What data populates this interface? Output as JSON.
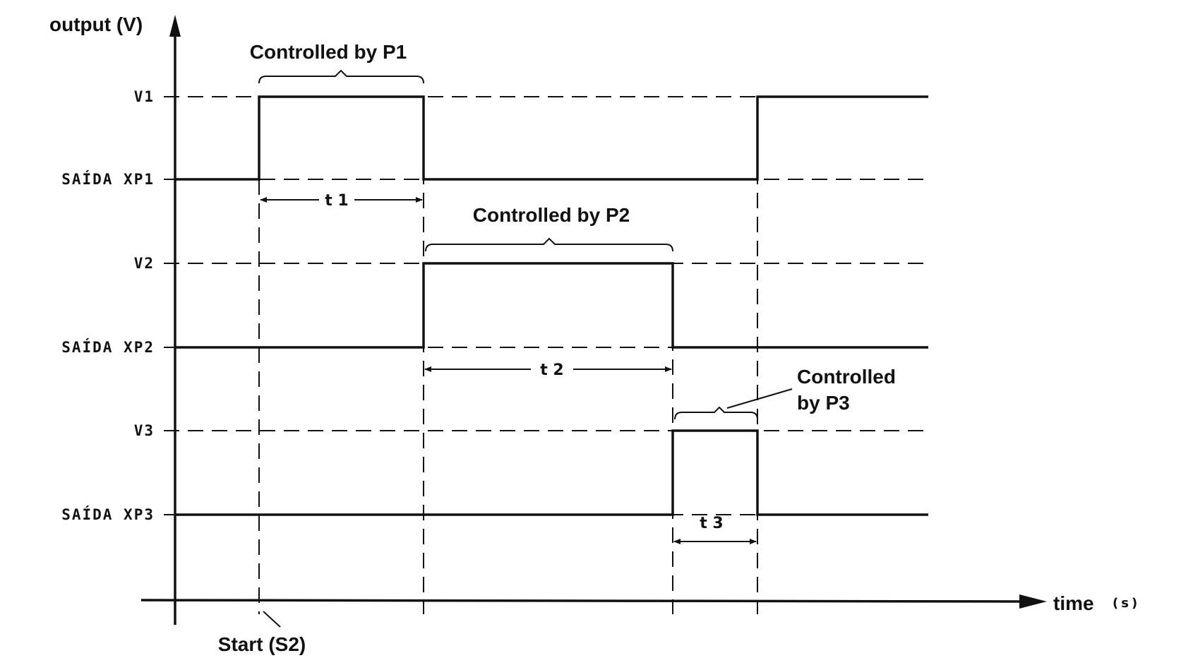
{
  "axes": {
    "y_label": "output (V)",
    "x_label": "time",
    "x_unit": "(s)"
  },
  "levels": [
    {
      "label": "V1"
    },
    {
      "label": "SAÍDA XP1"
    },
    {
      "label": "V2"
    },
    {
      "label": "SAÍDA XP2"
    },
    {
      "label": "V3"
    },
    {
      "label": "SAÍDA XP3"
    }
  ],
  "controls": [
    {
      "lines": [
        "Controlled by P1"
      ]
    },
    {
      "lines": [
        "Controlled by P2"
      ]
    },
    {
      "lines": [
        "Controlled",
        "by P3"
      ]
    }
  ],
  "intervals": [
    {
      "label": "t 1"
    },
    {
      "label": "t 2"
    },
    {
      "label": "t 3"
    }
  ],
  "start": {
    "label": "Start (S2)"
  }
}
